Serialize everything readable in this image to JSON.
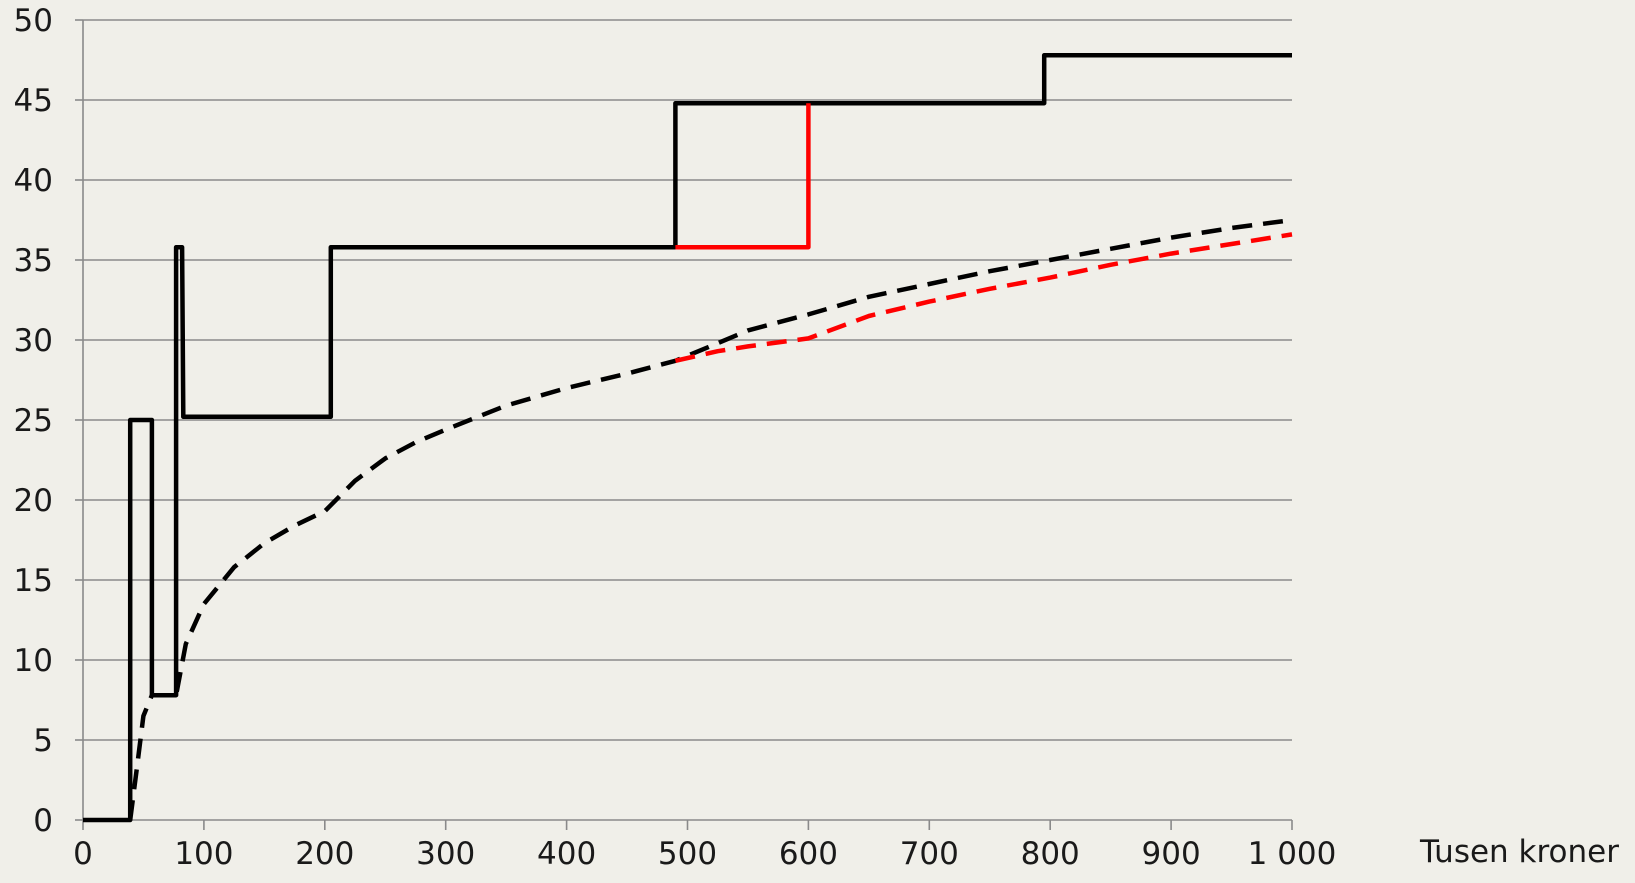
{
  "colors": {
    "background": "#f0efe9",
    "grid": "#8a8a8a",
    "axis": "#8a8a8a",
    "black": "#000000",
    "red": "#ff0000"
  },
  "chart_data": {
    "type": "line",
    "title": "",
    "xlabel": "Tusen kroner",
    "ylabel": "",
    "xlim": [
      0,
      1000
    ],
    "ylim": [
      0,
      50
    ],
    "grid": true,
    "legend": "none",
    "x_ticks": [
      0,
      100,
      200,
      300,
      400,
      500,
      600,
      700,
      800,
      900,
      1000
    ],
    "x_tick_labels": [
      "0",
      "100",
      "200",
      "300",
      "400",
      "500",
      "600",
      "700",
      "800",
      "900",
      "1 000"
    ],
    "y_ticks": [
      0,
      5,
      10,
      15,
      20,
      25,
      30,
      35,
      40,
      45,
      50
    ],
    "y_tick_labels": [
      "0",
      "5",
      "10",
      "15",
      "20",
      "25",
      "30",
      "35",
      "40",
      "45",
      "50"
    ],
    "series": [
      {
        "style": "solid",
        "color": "#000000",
        "points": [
          [
            0,
            0
          ],
          [
            39,
            0
          ],
          [
            39,
            25
          ],
          [
            57,
            25
          ],
          [
            57,
            7.8
          ],
          [
            77,
            7.8
          ],
          [
            77,
            35.8
          ],
          [
            82,
            35.8
          ],
          [
            83,
            25.2
          ],
          [
            205,
            25.2
          ],
          [
            205,
            35.8
          ],
          [
            490,
            35.8
          ],
          [
            490,
            44.8
          ],
          [
            795,
            44.8
          ],
          [
            795,
            47.8
          ],
          [
            1000,
            47.8
          ]
        ]
      },
      {
        "style": "solid",
        "color": "#ff0000",
        "points": [
          [
            490,
            35.8
          ],
          [
            600,
            35.8
          ],
          [
            600,
            44.8
          ]
        ]
      },
      {
        "style": "dashed",
        "color": "#000000",
        "points": [
          [
            39,
            0
          ],
          [
            45,
            3.5
          ],
          [
            50,
            6.5
          ],
          [
            57,
            7.8
          ],
          [
            77,
            7.8
          ],
          [
            85,
            11
          ],
          [
            100,
            13.5
          ],
          [
            125,
            15.8
          ],
          [
            150,
            17.3
          ],
          [
            175,
            18.4
          ],
          [
            200,
            19.3
          ],
          [
            225,
            21.2
          ],
          [
            250,
            22.6
          ],
          [
            275,
            23.6
          ],
          [
            300,
            24.4
          ],
          [
            350,
            25.9
          ],
          [
            400,
            27
          ],
          [
            450,
            27.9
          ],
          [
            490,
            28.7
          ],
          [
            525,
            29.8
          ],
          [
            550,
            30.6
          ],
          [
            600,
            31.6
          ],
          [
            650,
            32.7
          ],
          [
            700,
            33.5
          ],
          [
            750,
            34.3
          ],
          [
            800,
            35
          ],
          [
            850,
            35.7
          ],
          [
            900,
            36.4
          ],
          [
            950,
            37
          ],
          [
            1000,
            37.5
          ]
        ]
      },
      {
        "style": "dashed",
        "color": "#ff0000",
        "points": [
          [
            490,
            28.7
          ],
          [
            525,
            29.3
          ],
          [
            550,
            29.6
          ],
          [
            600,
            30.1
          ],
          [
            650,
            31.5
          ],
          [
            700,
            32.4
          ],
          [
            750,
            33.2
          ],
          [
            800,
            33.9
          ],
          [
            850,
            34.7
          ],
          [
            900,
            35.4
          ],
          [
            950,
            36
          ],
          [
            1000,
            36.6
          ]
        ]
      }
    ]
  }
}
